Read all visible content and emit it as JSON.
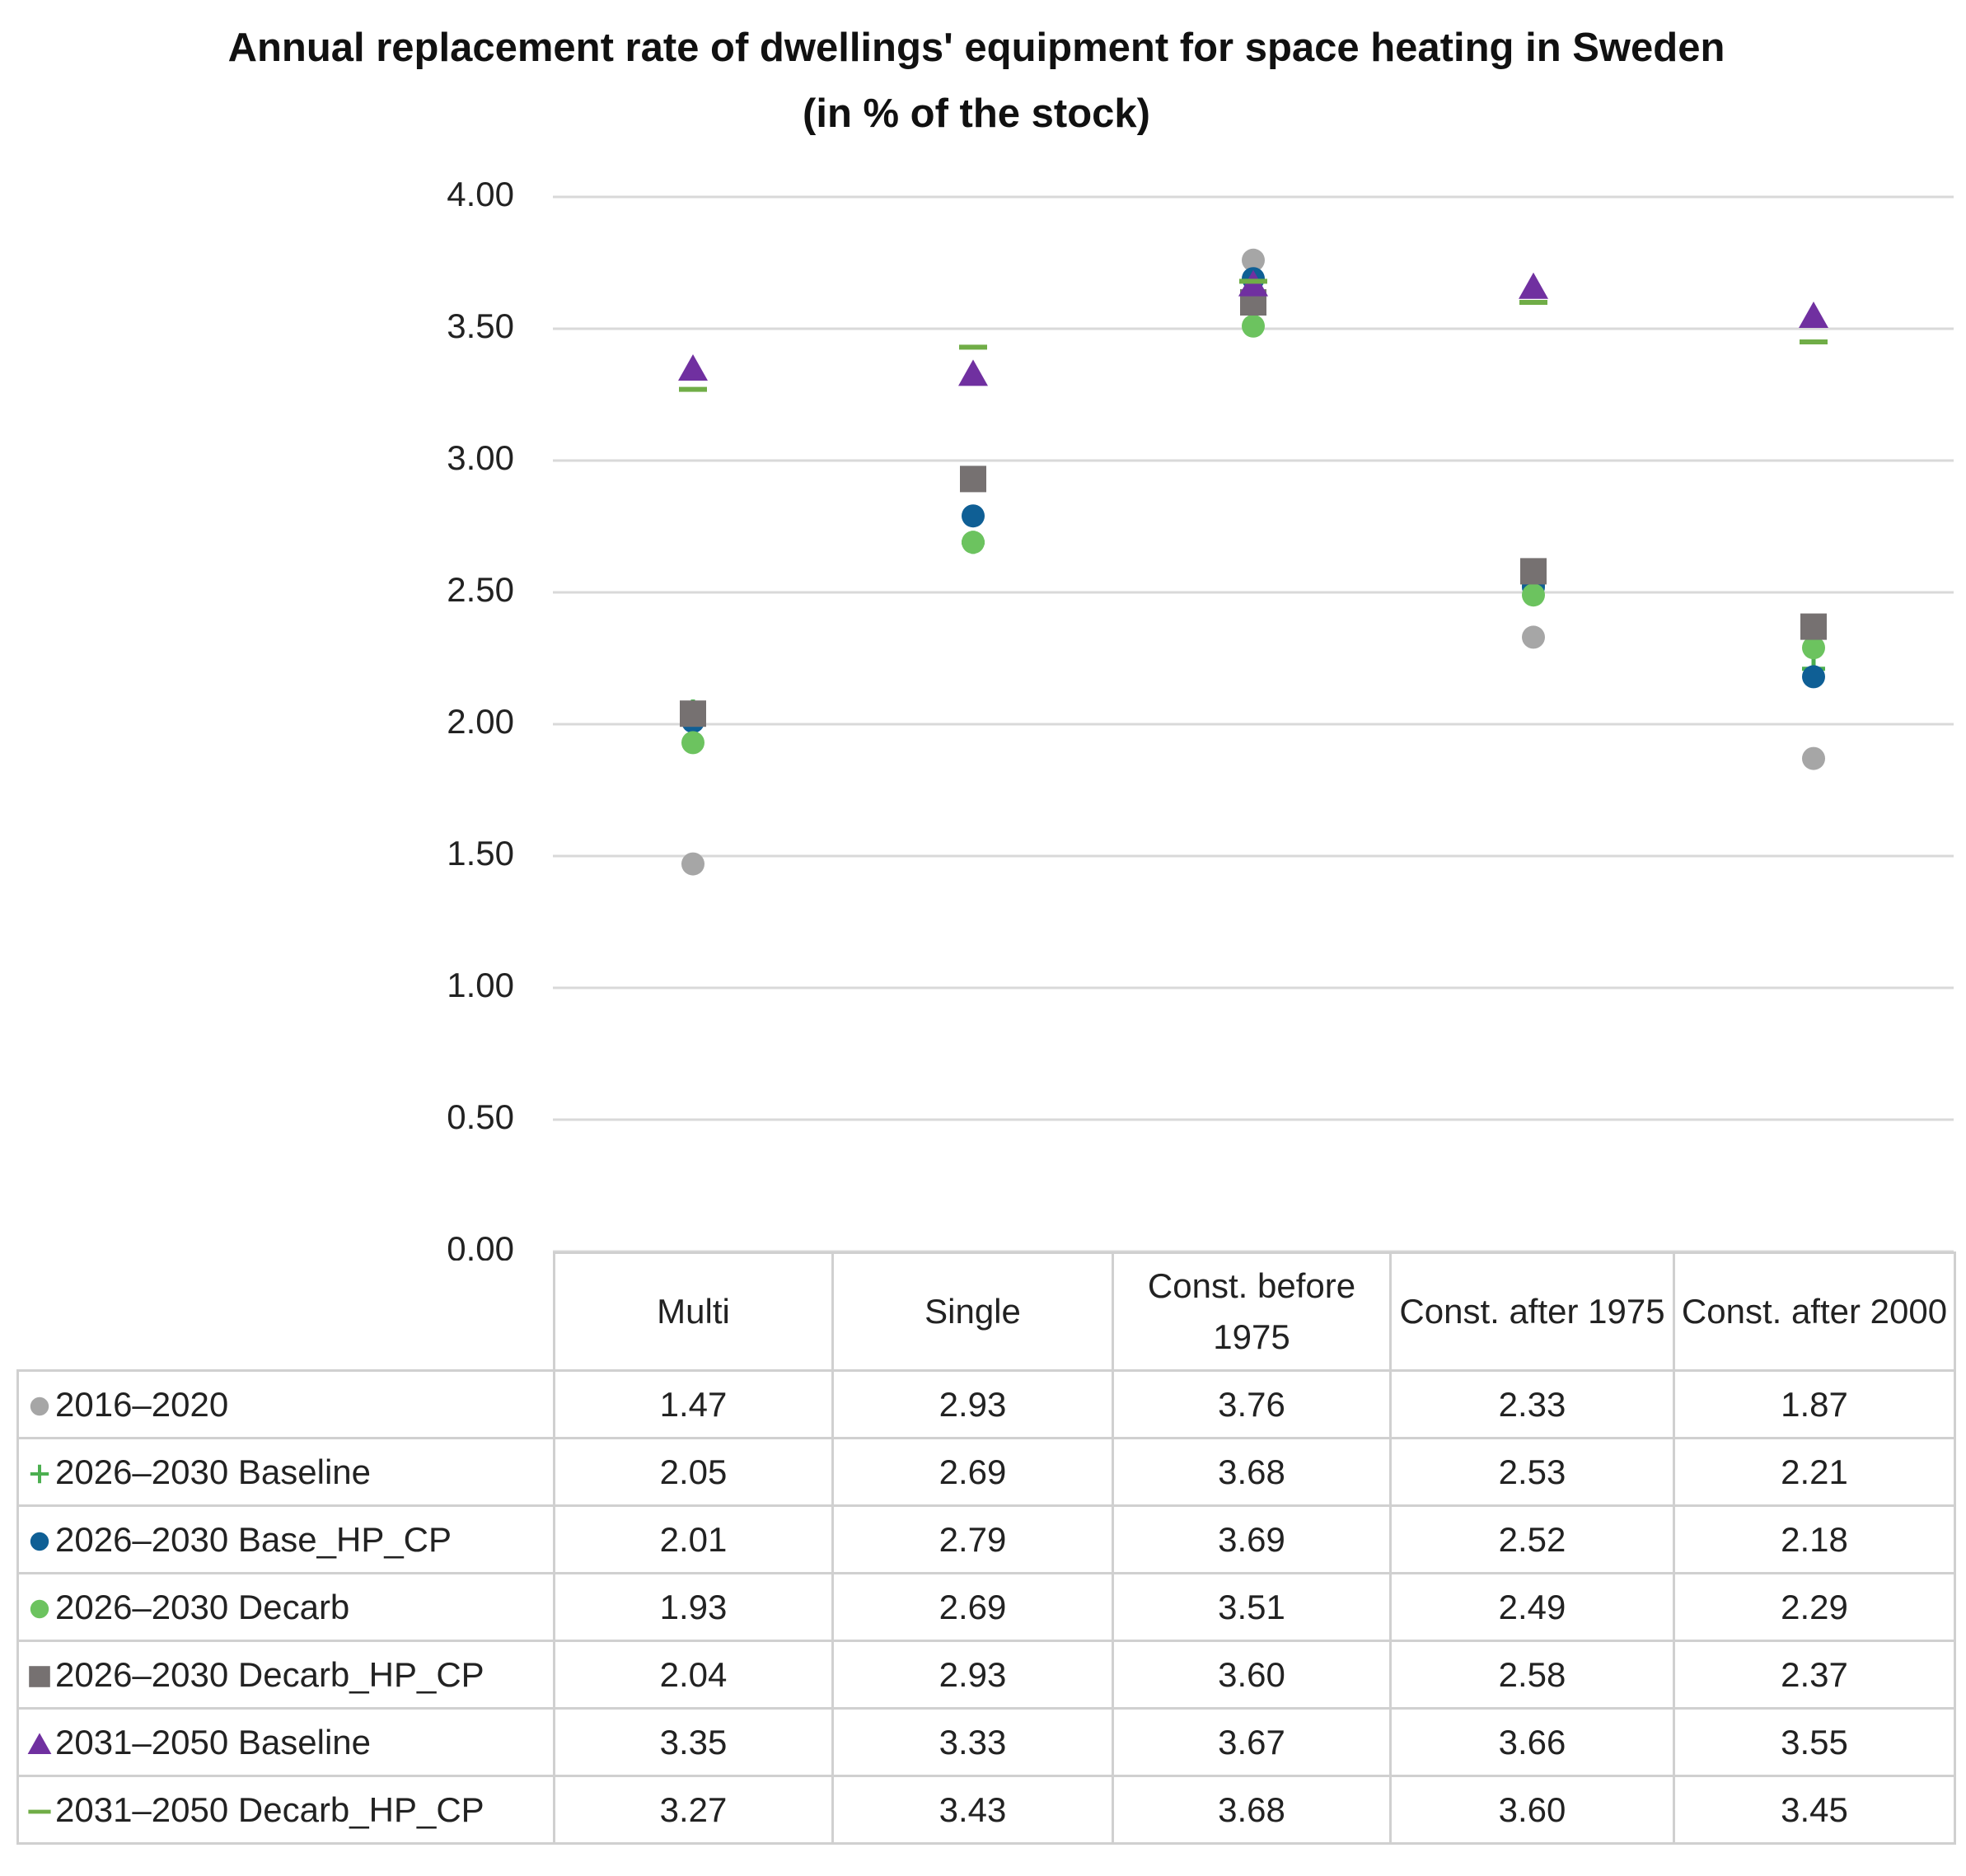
{
  "chart_data": {
    "type": "scatter",
    "title": "Annual replacement rate of dwellings' equipment for space heating in Sweden (in % of the stock)",
    "categories": [
      "Multi",
      "Single",
      "Const. before 1975",
      "Const. after 1975",
      "Const. after 2000"
    ],
    "ylim": [
      0,
      4
    ],
    "yticks": [
      {
        "value": 0,
        "label": "0.00"
      },
      {
        "value": 0.5,
        "label": "0.50"
      },
      {
        "value": 1,
        "label": "1.00"
      },
      {
        "value": 1.5,
        "label": "1.50"
      },
      {
        "value": 2,
        "label": "2.00"
      },
      {
        "value": 2.5,
        "label": "2.50"
      },
      {
        "value": 3,
        "label": "3.00"
      },
      {
        "value": 3.5,
        "label": "3.50"
      },
      {
        "value": 4,
        "label": "4.00"
      }
    ],
    "grid": true,
    "series": [
      {
        "name": "2016–2020",
        "color": "#a6a6a6",
        "marker": "circle",
        "values": [
          1.47,
          2.93,
          3.76,
          2.33,
          1.87
        ],
        "value_labels": [
          "1.47",
          "2.93",
          "3.76",
          "2.33",
          "1.87"
        ]
      },
      {
        "name": "2026–2030 Baseline",
        "color": "#4caf50",
        "marker": "plus",
        "values": [
          2.05,
          2.69,
          3.68,
          2.53,
          2.21
        ],
        "value_labels": [
          "2.05",
          "2.69",
          "3.68",
          "2.53",
          "2.21"
        ]
      },
      {
        "name": "2026–2030 Base_HP_CP",
        "color": "#0f5f95",
        "marker": "circle",
        "values": [
          2.01,
          2.79,
          3.69,
          2.52,
          2.18
        ],
        "value_labels": [
          "2.01",
          "2.79",
          "3.69",
          "2.52",
          "2.18"
        ]
      },
      {
        "name": "2026–2030 Decarb",
        "color": "#6cc35f",
        "marker": "circle",
        "values": [
          1.93,
          2.69,
          3.51,
          2.49,
          2.29
        ],
        "value_labels": [
          "1.93",
          "2.69",
          "3.51",
          "2.49",
          "2.29"
        ]
      },
      {
        "name": "2026–2030 Decarb_HP_CP",
        "color": "#767171",
        "marker": "square",
        "values": [
          2.04,
          2.93,
          3.6,
          2.58,
          2.37
        ],
        "value_labels": [
          "2.04",
          "2.93",
          "3.60",
          "2.58",
          "2.37"
        ]
      },
      {
        "name": "2031–2050 Baseline",
        "color": "#7030a0",
        "marker": "triangle",
        "values": [
          3.35,
          3.33,
          3.67,
          3.66,
          3.55
        ],
        "value_labels": [
          "3.35",
          "3.33",
          "3.67",
          "3.66",
          "3.55"
        ]
      },
      {
        "name": "2031–2050 Decarb_HP_CP",
        "color": "#70ad47",
        "marker": "dash",
        "values": [
          3.27,
          3.43,
          3.68,
          3.6,
          3.45
        ],
        "value_labels": [
          "3.27",
          "3.43",
          "3.68",
          "3.60",
          "3.45"
        ]
      }
    ]
  }
}
